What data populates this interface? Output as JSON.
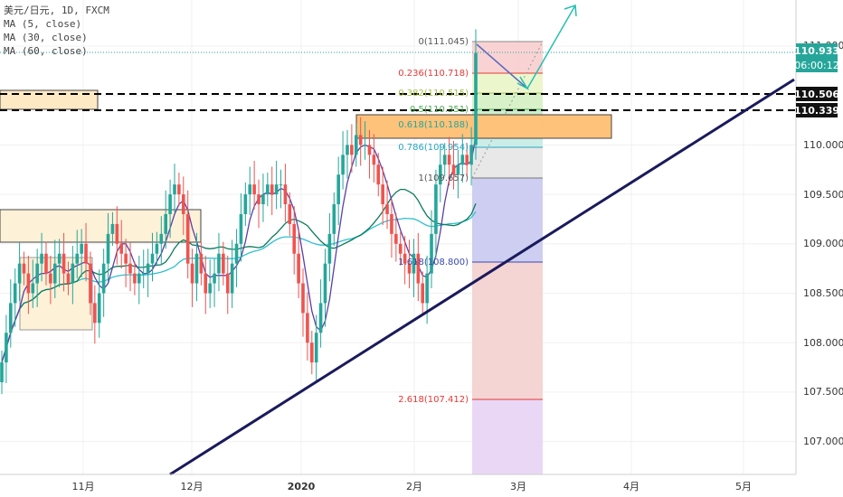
{
  "legend": {
    "symbol": "美元/日元, 1D, FXCM",
    "ma5": "MA (5, close)",
    "ma30": "MA (30, close)",
    "ma60": "MA (60, close)"
  },
  "badges": {
    "price": "110.933",
    "countdown": "06:00:12",
    "level1": "110.506",
    "level2": "110.339"
  },
  "colors": {
    "up": "#26a69a",
    "down": "#ef5350",
    "ma5": "#5b3fa6",
    "ma30": "#0b7a5c",
    "ma60": "#2fbfcf",
    "trendline": "#1a1a5c",
    "fib_red": "#e53935"
  },
  "chart_data": {
    "type": "candlestick",
    "y_ticks": [
      "111.000",
      "110.500",
      "110.000",
      "109.500",
      "109.000",
      "108.500",
      "108.000",
      "107.500",
      "107.000"
    ],
    "x_ticks": [
      "11月",
      "12月",
      "2020",
      "2月",
      "3月",
      "4月",
      "5月"
    ],
    "ylim": [
      106.6,
      111.4
    ],
    "fib_levels": [
      {
        "label": "0(111.045)",
        "value": 111.045
      },
      {
        "label": "0.236(110.718)",
        "value": 110.718
      },
      {
        "label": "0.382(110.515)",
        "value": 110.515
      },
      {
        "label": "0.5(110.351)",
        "value": 110.351
      },
      {
        "label": "0.618(110.188)",
        "value": 110.188
      },
      {
        "label": "0.786(109.954)",
        "value": 109.954
      },
      {
        "label": "1(109.657)",
        "value": 109.657
      },
      {
        "label": "1.618(108.800)",
        "value": 108.8
      },
      {
        "label": "2.618(107.412)",
        "value": 107.412
      }
    ],
    "horizontal_levels": [
      110.506,
      110.339
    ],
    "last_price": 110.933,
    "closes": [
      107.8,
      108.1,
      108.4,
      108.6,
      108.8,
      108.7,
      108.5,
      108.6,
      108.8,
      108.9,
      108.7,
      108.6,
      108.8,
      108.9,
      108.7,
      108.6,
      108.8,
      108.9,
      109.0,
      108.8,
      108.4,
      108.2,
      108.5,
      108.8,
      109.1,
      109.2,
      109.0,
      108.9,
      108.8,
      108.7,
      108.6,
      108.7,
      108.7,
      108.8,
      108.9,
      109.0,
      109.1,
      109.3,
      109.5,
      109.6,
      109.5,
      109.3,
      108.8,
      108.6,
      108.9,
      108.7,
      108.5,
      108.6,
      108.7,
      108.9,
      108.7,
      108.5,
      108.8,
      109.0,
      109.3,
      109.5,
      109.6,
      109.5,
      109.4,
      109.5,
      109.6,
      109.5,
      109.6,
      109.6,
      109.4,
      109.2,
      108.9,
      108.6,
      108.3,
      108.0,
      107.8,
      108.1,
      108.4,
      108.8,
      109.1,
      109.4,
      109.7,
      109.9,
      110.0,
      109.9,
      110.1,
      110.0,
      110.0,
      109.9,
      109.8,
      109.6,
      109.4,
      109.3,
      109.1,
      109.0,
      108.9,
      108.8,
      108.7,
      108.9,
      108.6,
      108.4,
      108.7,
      109.1,
      109.6,
      109.8,
      109.9,
      109.8,
      109.7,
      109.8,
      109.9,
      109.8,
      110.0,
      110.93
    ]
  }
}
